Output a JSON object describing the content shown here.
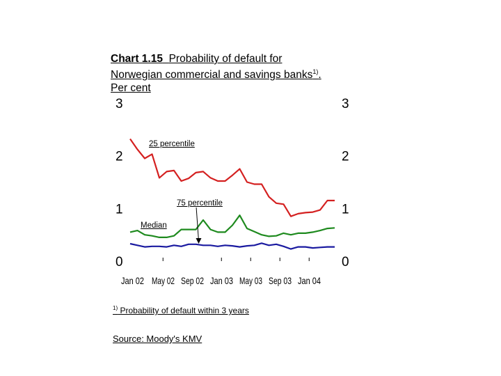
{
  "title": {
    "number": "Chart 1.15",
    "text": "Probability of default for Norwegian commercial and savings banks",
    "footnote_marker": "1)",
    "unit": "Per cent"
  },
  "footnote": {
    "marker": "1)",
    "text": "Probability of default within 3 years"
  },
  "source": "Source: Moody's KMV",
  "chart_data": {
    "type": "line",
    "ylim": [
      0,
      3
    ],
    "yticks": [
      0,
      1,
      2,
      3
    ],
    "ytick_labels": [
      "0",
      "1",
      "2",
      "3"
    ],
    "yaxis_right_ticks": [
      "0",
      "1",
      "2",
      "3"
    ],
    "xlabels": [
      "Jan 02",
      "May 02",
      "Sep 02",
      "Jan 03",
      "May 03",
      "Sep 03",
      "Jan 04"
    ],
    "x_count": 29,
    "grid": false,
    "annotations": [
      {
        "text": "25 percentile",
        "series": "25 percentile"
      },
      {
        "text": "75 percentile",
        "series": "75 percentile"
      },
      {
        "text": "Median",
        "series": "Median"
      }
    ],
    "series": [
      {
        "name": "25 percentile",
        "color": "#d42020",
        "values": [
          2.32,
          2.12,
          1.95,
          2.03,
          1.58,
          1.7,
          1.72,
          1.52,
          1.57,
          1.68,
          1.7,
          1.58,
          1.52,
          1.52,
          1.63,
          1.75,
          1.5,
          1.46,
          1.46,
          1.22,
          1.1,
          1.08,
          0.85,
          0.9,
          0.92,
          0.93,
          0.97,
          1.15,
          1.15
        ]
      },
      {
        "name": "Median",
        "color": "#1e8a1e",
        "values": [
          0.55,
          0.58,
          0.5,
          0.48,
          0.45,
          0.45,
          0.48,
          0.6,
          0.6,
          0.6,
          0.78,
          0.6,
          0.55,
          0.55,
          0.68,
          0.87,
          0.62,
          0.56,
          0.5,
          0.47,
          0.48,
          0.53,
          0.5,
          0.53,
          0.53,
          0.55,
          0.58,
          0.62,
          0.63
        ]
      },
      {
        "name": "75 percentile",
        "color": "#1a1aa0",
        "values": [
          0.33,
          0.3,
          0.27,
          0.28,
          0.28,
          0.27,
          0.3,
          0.28,
          0.32,
          0.32,
          0.3,
          0.3,
          0.28,
          0.3,
          0.29,
          0.27,
          0.29,
          0.3,
          0.34,
          0.3,
          0.32,
          0.28,
          0.23,
          0.27,
          0.27,
          0.25,
          0.26,
          0.27,
          0.27
        ]
      }
    ]
  }
}
